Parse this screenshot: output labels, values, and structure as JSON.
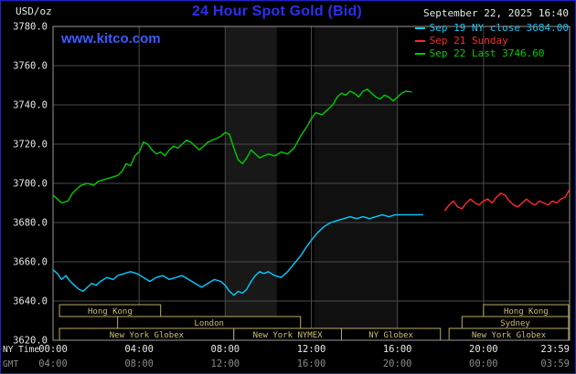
{
  "header": {
    "units_label": "USD/oz",
    "title": "24 Hour Spot Gold (Bid)",
    "datetime": "September 22, 2025 16:40",
    "watermark": "www.kitco.com"
  },
  "legend": {
    "items": [
      {
        "label": "Sep 19 NY close 3684.00",
        "color": "#00ccff"
      },
      {
        "label": "Sep 21 Sunday",
        "color": "#ff2a2a"
      },
      {
        "label": "Sep 22 Last 3746.60",
        "color": "#00cc00"
      }
    ]
  },
  "colors": {
    "background": "#000000",
    "title_blue": "#2e2ef0",
    "link_blue": "#3b5bff",
    "grid": "#4a4a4a",
    "plot_border": "#999999",
    "session_box": "#b9ab63",
    "session_text": "#cdbf72",
    "axis_text": "#e8e8e8",
    "axis_text_dim": "#8a8a8a"
  },
  "chart_data": {
    "type": "line",
    "title": "24 Hour Spot Gold (Bid)",
    "ylabel": "USD/oz",
    "y_axis": {
      "min": 3620,
      "max": 3780,
      "tick_step": 20,
      "ticks": [
        3780,
        3760,
        3740,
        3720,
        3700,
        3680,
        3660,
        3640,
        3620
      ]
    },
    "x_axis": {
      "label_primary": "NY Time",
      "label_secondary": "GMT",
      "min": 0,
      "max": 24,
      "ticks": [
        {
          "t": 0,
          "primary": "00:00",
          "secondary": "04:00"
        },
        {
          "t": 4,
          "primary": "04:00",
          "secondary": "08:00"
        },
        {
          "t": 8,
          "primary": "08:00",
          "secondary": "12:00"
        },
        {
          "t": 12,
          "primary": "12:00",
          "secondary": "16:00"
        },
        {
          "t": 16,
          "primary": "16:00",
          "secondary": "20:00"
        },
        {
          "t": 20,
          "primary": "20:00",
          "secondary": "00:00"
        },
        {
          "t": 24,
          "primary": "23:59",
          "secondary": "03:59"
        }
      ]
    },
    "bands": [
      {
        "from": 8.0,
        "to": 10.4,
        "color": "#181818"
      },
      {
        "from": 12.15,
        "to": 16.0,
        "color": "#101010"
      }
    ],
    "series": [
      {
        "name": "Sep 19 NY close",
        "value": 3684.0,
        "color": "#00ccff",
        "points": [
          [
            0,
            3656
          ],
          [
            0.2,
            3654
          ],
          [
            0.4,
            3651
          ],
          [
            0.6,
            3653
          ],
          [
            0.8,
            3650
          ],
          [
            1,
            3648
          ],
          [
            1.2,
            3646
          ],
          [
            1.4,
            3645
          ],
          [
            1.6,
            3647
          ],
          [
            1.8,
            3649
          ],
          [
            2,
            3648
          ],
          [
            2.2,
            3650
          ],
          [
            2.5,
            3652
          ],
          [
            2.8,
            3651
          ],
          [
            3,
            3653
          ],
          [
            3.3,
            3654
          ],
          [
            3.6,
            3655
          ],
          [
            3.9,
            3654
          ],
          [
            4.2,
            3652
          ],
          [
            4.5,
            3650
          ],
          [
            4.8,
            3652
          ],
          [
            5.1,
            3653
          ],
          [
            5.4,
            3651
          ],
          [
            5.7,
            3652
          ],
          [
            6,
            3653
          ],
          [
            6.3,
            3651
          ],
          [
            6.6,
            3649
          ],
          [
            6.9,
            3647
          ],
          [
            7.2,
            3649
          ],
          [
            7.5,
            3651
          ],
          [
            7.8,
            3650
          ],
          [
            8,
            3648
          ],
          [
            8.2,
            3645
          ],
          [
            8.4,
            3643
          ],
          [
            8.6,
            3645
          ],
          [
            8.8,
            3644
          ],
          [
            9,
            3646
          ],
          [
            9.2,
            3650
          ],
          [
            9.4,
            3653
          ],
          [
            9.6,
            3655
          ],
          [
            9.8,
            3654
          ],
          [
            10,
            3655
          ],
          [
            10.3,
            3653
          ],
          [
            10.6,
            3652
          ],
          [
            10.9,
            3655
          ],
          [
            11.2,
            3659
          ],
          [
            11.5,
            3663
          ],
          [
            11.8,
            3668
          ],
          [
            12,
            3671
          ],
          [
            12.3,
            3675
          ],
          [
            12.6,
            3678
          ],
          [
            12.9,
            3680
          ],
          [
            13.2,
            3681
          ],
          [
            13.5,
            3682
          ],
          [
            13.8,
            3683
          ],
          [
            14.1,
            3682
          ],
          [
            14.4,
            3683
          ],
          [
            14.7,
            3682
          ],
          [
            15,
            3683
          ],
          [
            15.3,
            3684
          ],
          [
            15.6,
            3683
          ],
          [
            15.9,
            3684
          ],
          [
            16.2,
            3684
          ],
          [
            16.6,
            3684
          ],
          [
            17,
            3684
          ],
          [
            17.2,
            3684
          ]
        ]
      },
      {
        "name": "Sep 21 Sunday",
        "color": "#ff2a2a",
        "points": [
          [
            18.2,
            3686
          ],
          [
            18.4,
            3689
          ],
          [
            18.6,
            3691
          ],
          [
            18.8,
            3688
          ],
          [
            19,
            3687
          ],
          [
            19.2,
            3690
          ],
          [
            19.4,
            3692
          ],
          [
            19.6,
            3690
          ],
          [
            19.8,
            3689
          ],
          [
            20,
            3691
          ],
          [
            20.2,
            3692
          ],
          [
            20.4,
            3690
          ],
          [
            20.6,
            3693
          ],
          [
            20.8,
            3695
          ],
          [
            21,
            3694
          ],
          [
            21.2,
            3691
          ],
          [
            21.4,
            3689
          ],
          [
            21.6,
            3688
          ],
          [
            21.8,
            3690
          ],
          [
            22,
            3692
          ],
          [
            22.2,
            3690
          ],
          [
            22.4,
            3689
          ],
          [
            22.6,
            3691
          ],
          [
            22.8,
            3690
          ],
          [
            23,
            3689
          ],
          [
            23.2,
            3691
          ],
          [
            23.4,
            3690
          ],
          [
            23.6,
            3692
          ],
          [
            23.8,
            3693
          ],
          [
            24,
            3697
          ]
        ]
      },
      {
        "name": "Sep 22 Last",
        "value": 3746.6,
        "color": "#00cc00",
        "points": [
          [
            0,
            3694
          ],
          [
            0.2,
            3692
          ],
          [
            0.4,
            3690
          ],
          [
            0.7,
            3691
          ],
          [
            0.9,
            3695
          ],
          [
            1.1,
            3697
          ],
          [
            1.3,
            3699
          ],
          [
            1.6,
            3700
          ],
          [
            1.9,
            3699
          ],
          [
            2.1,
            3701
          ],
          [
            2.4,
            3702
          ],
          [
            2.7,
            3703
          ],
          [
            3,
            3704
          ],
          [
            3.2,
            3706
          ],
          [
            3.4,
            3710
          ],
          [
            3.6,
            3709
          ],
          [
            3.8,
            3714
          ],
          [
            4,
            3716
          ],
          [
            4.2,
            3721
          ],
          [
            4.4,
            3720
          ],
          [
            4.6,
            3717
          ],
          [
            4.8,
            3715
          ],
          [
            5,
            3716
          ],
          [
            5.2,
            3714
          ],
          [
            5.4,
            3717
          ],
          [
            5.6,
            3719
          ],
          [
            5.8,
            3718
          ],
          [
            6,
            3720
          ],
          [
            6.2,
            3722
          ],
          [
            6.4,
            3721
          ],
          [
            6.6,
            3719
          ],
          [
            6.8,
            3717
          ],
          [
            7,
            3719
          ],
          [
            7.2,
            3721
          ],
          [
            7.4,
            3722
          ],
          [
            7.6,
            3723
          ],
          [
            7.8,
            3724
          ],
          [
            8,
            3726
          ],
          [
            8.2,
            3725
          ],
          [
            8.4,
            3718
          ],
          [
            8.6,
            3712
          ],
          [
            8.8,
            3710
          ],
          [
            9,
            3713
          ],
          [
            9.2,
            3717
          ],
          [
            9.4,
            3715
          ],
          [
            9.6,
            3713
          ],
          [
            9.8,
            3714
          ],
          [
            10,
            3715
          ],
          [
            10.3,
            3714
          ],
          [
            10.6,
            3716
          ],
          [
            10.9,
            3715
          ],
          [
            11.2,
            3718
          ],
          [
            11.5,
            3724
          ],
          [
            11.8,
            3729
          ],
          [
            12,
            3733
          ],
          [
            12.2,
            3736
          ],
          [
            12.5,
            3735
          ],
          [
            12.8,
            3738
          ],
          [
            13,
            3740
          ],
          [
            13.2,
            3744
          ],
          [
            13.4,
            3746
          ],
          [
            13.6,
            3745
          ],
          [
            13.8,
            3747
          ],
          [
            14,
            3746
          ],
          [
            14.2,
            3744
          ],
          [
            14.4,
            3747
          ],
          [
            14.6,
            3748
          ],
          [
            14.8,
            3746
          ],
          [
            15,
            3744
          ],
          [
            15.2,
            3743
          ],
          [
            15.4,
            3745
          ],
          [
            15.6,
            3744
          ],
          [
            15.8,
            3742
          ],
          [
            16,
            3744
          ],
          [
            16.2,
            3746
          ],
          [
            16.4,
            3747
          ],
          [
            16.67,
            3746.6
          ]
        ]
      }
    ],
    "sessions": [
      {
        "row": 0,
        "from": 0.3,
        "to": 5.0,
        "label": "Hong Kong"
      },
      {
        "row": 0,
        "from": 20.0,
        "to": 23.95,
        "label": "Hong Kong"
      },
      {
        "row": 1,
        "from": 3.0,
        "to": 11.5,
        "label": "London"
      },
      {
        "row": 1,
        "from": 19.0,
        "to": 23.95,
        "label": "Sydney"
      },
      {
        "row": 2,
        "from": 0.3,
        "to": 8.4,
        "label": "New York Globex"
      },
      {
        "row": 2,
        "from": 8.4,
        "to": 13.4,
        "label": "New York NYMEX"
      },
      {
        "row": 2,
        "from": 13.4,
        "to": 18.0,
        "label": "NY Globex"
      },
      {
        "row": 2,
        "from": 18.4,
        "to": 23.95,
        "label": "New York Globex"
      }
    ]
  }
}
